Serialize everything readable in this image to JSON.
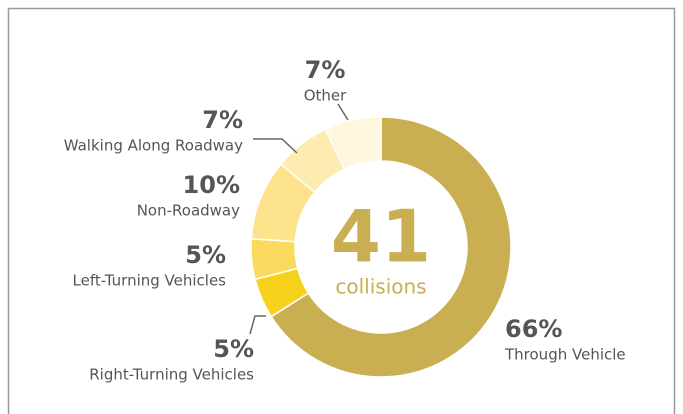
{
  "chart_data": {
    "type": "donut",
    "categories": [
      "Through Vehicle",
      "Right-Turning Vehicles",
      "Left-Turning Vehicles",
      "Non-Roadway",
      "Walking Along Roadway",
      "Other"
    ],
    "values": [
      66,
      5,
      5,
      10,
      7,
      7
    ],
    "value_labels": [
      "66%",
      "5%",
      "5%",
      "10%",
      "7%",
      "7%"
    ],
    "colors": [
      "#c9ae52",
      "#f6d21c",
      "#fbd95e",
      "#fde38c",
      "#fdebb2",
      "#fef6dd"
    ],
    "center_value": 41,
    "center_label": "collisions"
  }
}
